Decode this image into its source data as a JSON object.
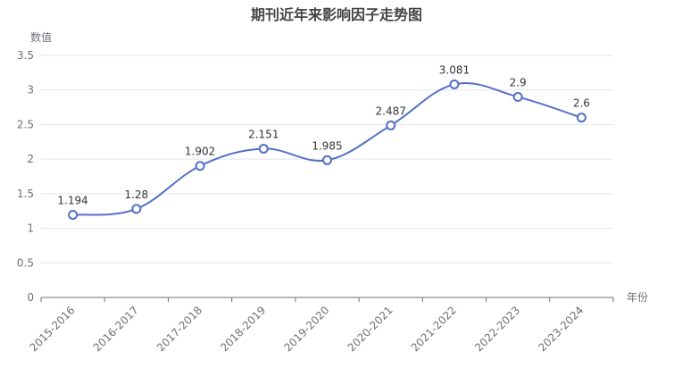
{
  "chart_data": {
    "type": "line",
    "title": "期刊近年来影响因子走势图",
    "ylabel": "数值",
    "xlabel": "年份",
    "categories": [
      "2015-2016",
      "2016-2017",
      "2017-2018",
      "2018-2019",
      "2019-2020",
      "2020-2021",
      "2021-2022",
      "2022-2023",
      "2023-2024"
    ],
    "values": [
      1.194,
      1.28,
      1.902,
      2.151,
      1.985,
      2.487,
      3.081,
      2.9,
      2.6
    ],
    "value_labels": [
      "1.194",
      "1.28",
      "1.902",
      "2.151",
      "1.985",
      "2.487",
      "3.081",
      "2.9",
      "2.6"
    ],
    "ylim": [
      0,
      3.5
    ],
    "yticks": [
      "0",
      "0.5",
      "1",
      "1.5",
      "2",
      "2.5",
      "3",
      "3.5"
    ],
    "smooth": true,
    "grid": "horizontal",
    "colors": {
      "line": "#5470c6",
      "grid": "#e0e6f1",
      "axis": "#6e7079"
    }
  }
}
